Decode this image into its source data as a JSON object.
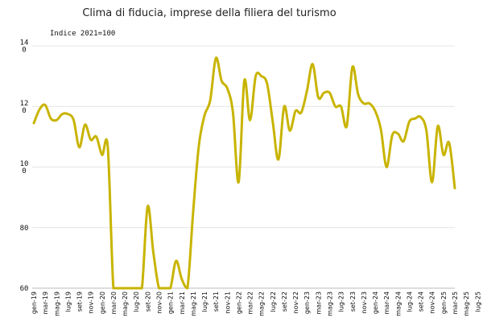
{
  "chart_data": {
    "type": "line",
    "title": "Clima di fiducia, imprese della filiera del turismo",
    "subtitle": "Indice 2021=100",
    "y_tick_labels": [
      {
        "value": 140,
        "lines": [
          "14",
          "0"
        ]
      },
      {
        "value": 120,
        "lines": [
          "12",
          "0"
        ]
      },
      {
        "value": 100,
        "lines": [
          "10",
          "0"
        ]
      },
      {
        "value": 80,
        "lines": [
          "80"
        ]
      },
      {
        "value": 60,
        "lines": [
          "60"
        ]
      }
    ],
    "ylim": [
      60,
      140
    ],
    "grid": true,
    "line_color": "#c8b400",
    "x_tick_labels": [
      "gen-19",
      "mar-19",
      "mag-19",
      "lug-19",
      "set-19",
      "nov-19",
      "gen-20",
      "mar-20",
      "mag-20",
      "lug-20",
      "set-20",
      "nov-20",
      "gen-21",
      "mar-21",
      "mag-21",
      "lug-21",
      "set-21",
      "nov-21",
      "gen-22",
      "mar-22",
      "mag-22",
      "lug-22",
      "set-22",
      "nov-22",
      "gen-23",
      "mar-23",
      "mag-23",
      "lug-23",
      "set-23",
      "nov-23",
      "gen-24",
      "mar-24",
      "mag-24",
      "lug-24",
      "set-24",
      "nov-24",
      "gen-25",
      "mar-25",
      "mag-25",
      "lug-25"
    ],
    "series": [
      {
        "values": [
          114.5,
          119,
          120.5,
          116,
          115.5,
          117.5,
          117.5,
          115.5,
          106.5,
          114,
          109,
          110,
          104,
          106.5,
          60,
          60,
          60,
          60,
          60,
          60,
          87,
          72,
          60,
          60,
          60,
          69,
          63,
          60,
          85,
          107,
          117,
          122,
          136,
          128.5,
          126,
          118,
          95,
          128.5,
          115.5,
          130,
          130,
          127.5,
          115,
          102.5,
          120,
          112,
          118.5,
          118,
          125,
          134,
          123,
          124.5,
          124.5,
          120,
          120,
          113.5,
          133,
          124,
          121,
          121,
          118.5,
          112.5,
          100,
          110.5,
          111,
          108.5,
          115,
          116,
          116.5,
          112,
          95,
          113.5,
          104,
          108,
          93
        ]
      }
    ]
  }
}
